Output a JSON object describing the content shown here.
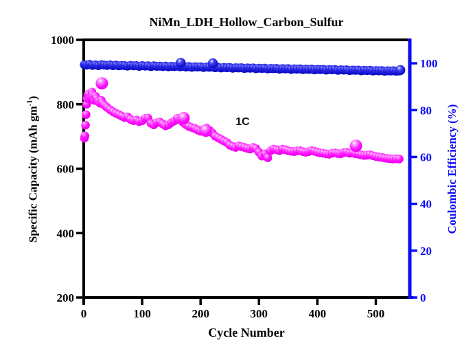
{
  "figure": {
    "title": "NiMn_LDH_Hollow_Carbon_Sulfur"
  },
  "chart_data": {
    "type": "scatter",
    "title": "NiMn_LDH_Hollow_Carbon_Sulfur",
    "xlabel": "Cycle Number",
    "x_range": [
      0,
      557
    ],
    "x_ticks": [
      0,
      100,
      200,
      300,
      400,
      500
    ],
    "grid": false,
    "legend": "none",
    "y_left": {
      "label_pre": "Specific Capacity (mAh gm",
      "label_sup": "-1",
      "label_post": ")",
      "range": [
        200,
        1000
      ],
      "ticks": [
        1000,
        800,
        600,
        400,
        200
      ],
      "color": "#000000"
    },
    "y_right": {
      "label": "Coulombic Efficiency (%)",
      "range": [
        0,
        110
      ],
      "ticks": [
        100,
        80,
        60,
        40,
        20,
        0
      ],
      "color": "#0a0af5"
    },
    "annotations": [
      {
        "text": "1C",
        "x": 272,
        "y": 745,
        "axis": "left"
      }
    ],
    "series": [
      {
        "name": "specific-capacity",
        "axis": "left",
        "color": "#ff00ff",
        "marker": "ball",
        "points": [
          [
            1,
            695
          ],
          [
            2,
            702
          ],
          [
            3,
            735
          ],
          [
            4,
            768
          ],
          [
            5,
            800
          ],
          [
            6,
            818
          ],
          [
            7,
            828
          ],
          [
            8,
            832
          ],
          [
            10,
            816
          ],
          [
            12,
            822
          ],
          [
            14,
            838
          ],
          [
            15,
            830
          ],
          [
            16,
            824
          ],
          [
            18,
            812
          ],
          [
            20,
            825
          ],
          [
            22,
            818
          ],
          [
            25,
            808
          ],
          [
            28,
            803
          ],
          [
            30,
            812
          ],
          [
            32,
            804
          ],
          [
            35,
            798
          ],
          [
            38,
            793
          ],
          [
            40,
            790
          ],
          [
            45,
            783
          ],
          [
            50,
            777
          ],
          [
            55,
            772
          ],
          [
            60,
            768
          ],
          [
            65,
            763
          ],
          [
            70,
            759
          ],
          [
            75,
            761
          ],
          [
            80,
            753
          ],
          [
            85,
            749
          ],
          [
            90,
            751
          ],
          [
            95,
            746
          ],
          [
            100,
            749
          ],
          [
            105,
            756
          ],
          [
            110,
            757
          ],
          [
            115,
            741
          ],
          [
            120,
            736
          ],
          [
            125,
            743
          ],
          [
            130,
            745
          ],
          [
            135,
            739
          ],
          [
            140,
            733
          ],
          [
            145,
            736
          ],
          [
            150,
            743
          ],
          [
            155,
            748
          ],
          [
            160,
            756
          ],
          [
            165,
            751
          ],
          [
            170,
            744
          ],
          [
            175,
            737
          ],
          [
            180,
            731
          ],
          [
            185,
            728
          ],
          [
            190,
            725
          ],
          [
            195,
            720
          ],
          [
            200,
            716
          ],
          [
            205,
            722
          ],
          [
            210,
            726
          ],
          [
            215,
            719
          ],
          [
            220,
            711
          ],
          [
            225,
            701
          ],
          [
            230,
            696
          ],
          [
            235,
            691
          ],
          [
            240,
            686
          ],
          [
            245,
            681
          ],
          [
            250,
            673
          ],
          [
            255,
            669
          ],
          [
            260,
            666
          ],
          [
            265,
            671
          ],
          [
            270,
            668
          ],
          [
            275,
            666
          ],
          [
            280,
            663
          ],
          [
            285,
            661
          ],
          [
            290,
            666
          ],
          [
            295,
            662
          ],
          [
            300,
            651
          ],
          [
            305,
            639
          ],
          [
            310,
            646
          ],
          [
            315,
            634
          ],
          [
            320,
            656
          ],
          [
            325,
            661
          ],
          [
            330,
            659
          ],
          [
            335,
            656
          ],
          [
            340,
            661
          ],
          [
            345,
            659
          ],
          [
            350,
            656
          ],
          [
            355,
            654
          ],
          [
            360,
            653
          ],
          [
            365,
            655
          ],
          [
            370,
            656
          ],
          [
            375,
            653
          ],
          [
            380,
            651
          ],
          [
            385,
            653
          ],
          [
            390,
            656
          ],
          [
            395,
            654
          ],
          [
            400,
            651
          ],
          [
            405,
            649
          ],
          [
            410,
            648
          ],
          [
            415,
            646
          ],
          [
            420,
            645
          ],
          [
            425,
            648
          ],
          [
            430,
            649
          ],
          [
            435,
            647
          ],
          [
            440,
            646
          ],
          [
            445,
            650
          ],
          [
            450,
            651
          ],
          [
            455,
            648
          ],
          [
            460,
            649
          ],
          [
            465,
            646
          ],
          [
            470,
            645
          ],
          [
            475,
            643
          ],
          [
            480,
            641
          ],
          [
            485,
            642
          ],
          [
            490,
            643
          ],
          [
            495,
            640
          ],
          [
            500,
            638
          ],
          [
            505,
            636
          ],
          [
            510,
            635
          ],
          [
            515,
            633
          ],
          [
            520,
            632
          ],
          [
            525,
            631
          ],
          [
            530,
            630
          ],
          [
            535,
            631
          ],
          [
            540,
            630
          ]
        ],
        "outliers": [
          [
            31,
            865
          ],
          [
            171,
            757
          ],
          [
            209,
            718
          ],
          [
            466,
            671
          ]
        ]
      },
      {
        "name": "coulombic-efficiency",
        "axis": "right",
        "color": "#1515cf",
        "marker": "ball",
        "points": [
          [
            1,
            99.4
          ],
          [
            5,
            99.2
          ],
          [
            10,
            99.5
          ],
          [
            15,
            99.1
          ],
          [
            20,
            99.3
          ],
          [
            25,
            99.0
          ],
          [
            30,
            99.4
          ],
          [
            35,
            99.2
          ],
          [
            40,
            99.1
          ],
          [
            45,
            99.3
          ],
          [
            50,
            99.0
          ],
          [
            55,
            99.2
          ],
          [
            60,
            98.9
          ],
          [
            65,
            99.1
          ],
          [
            70,
            99.0
          ],
          [
            75,
            98.8
          ],
          [
            80,
            99.1
          ],
          [
            85,
            98.9
          ],
          [
            90,
            99.0
          ],
          [
            95,
            98.7
          ],
          [
            100,
            99.0
          ],
          [
            105,
            98.8
          ],
          [
            110,
            98.9
          ],
          [
            115,
            98.6
          ],
          [
            120,
            98.9
          ],
          [
            125,
            98.7
          ],
          [
            130,
            98.8
          ],
          [
            135,
            98.6
          ],
          [
            140,
            98.8
          ],
          [
            145,
            98.5
          ],
          [
            150,
            98.7
          ],
          [
            155,
            98.6
          ],
          [
            160,
            98.8
          ],
          [
            165,
            98.5
          ],
          [
            170,
            98.7
          ],
          [
            175,
            98.4
          ],
          [
            180,
            98.6
          ],
          [
            185,
            98.3
          ],
          [
            190,
            98.5
          ],
          [
            195,
            98.4
          ],
          [
            200,
            98.5
          ],
          [
            205,
            98.2
          ],
          [
            210,
            98.4
          ],
          [
            215,
            98.3
          ],
          [
            220,
            98.4
          ],
          [
            225,
            98.1
          ],
          [
            230,
            98.3
          ],
          [
            235,
            98.0
          ],
          [
            240,
            98.2
          ],
          [
            245,
            98.1
          ],
          [
            250,
            98.2
          ],
          [
            255,
            97.9
          ],
          [
            260,
            98.1
          ],
          [
            265,
            98.0
          ],
          [
            270,
            98.1
          ],
          [
            275,
            97.8
          ],
          [
            280,
            98.0
          ],
          [
            285,
            97.9
          ],
          [
            290,
            98.0
          ],
          [
            295,
            97.7
          ],
          [
            300,
            97.9
          ],
          [
            305,
            97.8
          ],
          [
            310,
            97.9
          ],
          [
            315,
            97.6
          ],
          [
            320,
            97.8
          ],
          [
            325,
            97.7
          ],
          [
            330,
            97.8
          ],
          [
            335,
            97.5
          ],
          [
            340,
            97.7
          ],
          [
            345,
            97.6
          ],
          [
            350,
            97.7
          ],
          [
            355,
            97.4
          ],
          [
            360,
            97.6
          ],
          [
            365,
            97.5
          ],
          [
            370,
            97.6
          ],
          [
            375,
            97.3
          ],
          [
            380,
            97.5
          ],
          [
            385,
            97.4
          ],
          [
            390,
            97.5
          ],
          [
            395,
            97.2
          ],
          [
            400,
            97.4
          ],
          [
            405,
            97.3
          ],
          [
            410,
            97.4
          ],
          [
            415,
            97.1
          ],
          [
            420,
            97.3
          ],
          [
            425,
            97.2
          ],
          [
            430,
            97.3
          ],
          [
            435,
            97.0
          ],
          [
            440,
            97.2
          ],
          [
            445,
            97.1
          ],
          [
            450,
            97.2
          ],
          [
            455,
            96.9
          ],
          [
            460,
            97.1
          ],
          [
            465,
            97.0
          ],
          [
            470,
            97.1
          ],
          [
            475,
            96.8
          ],
          [
            480,
            97.0
          ],
          [
            485,
            96.9
          ],
          [
            490,
            97.0
          ],
          [
            495,
            96.7
          ],
          [
            500,
            96.9
          ],
          [
            505,
            96.8
          ],
          [
            510,
            96.9
          ],
          [
            515,
            96.6
          ],
          [
            520,
            96.8
          ],
          [
            525,
            96.7
          ],
          [
            530,
            96.8
          ],
          [
            535,
            96.6
          ],
          [
            540,
            96.7
          ]
        ],
        "outliers": [
          [
            166,
            100.2
          ],
          [
            221,
            100.0
          ],
          [
            542,
            97.1
          ]
        ]
      }
    ]
  }
}
